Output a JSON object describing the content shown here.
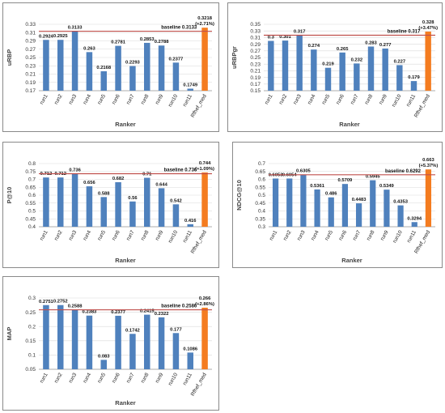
{
  "colors": {
    "bar": "#4f81bd",
    "highlight": "#f47c20",
    "baseline": "#c0504d",
    "grid": "#d9d9d9"
  },
  "chart_data": [
    {
      "type": "bar",
      "xlabel": "Ranker",
      "ylabel": "uRBP",
      "categories": [
        "run1",
        "run2",
        "run3",
        "run4",
        "run5",
        "run6",
        "run7",
        "run8",
        "run9",
        "run10",
        "run11",
        "Rfhef_med"
      ],
      "values": [
        0.2924,
        0.2925,
        0.3133,
        0.263,
        0.2168,
        0.2781,
        0.2293,
        0.2853,
        0.2788,
        0.2377,
        0.1749,
        0.3218
      ],
      "data_labels": [
        "0.2924",
        "0.2925",
        "0.3133",
        "0.263",
        "0.2168",
        "0.2781",
        "0.2293",
        "0.2853",
        "0.2788",
        "0.2377",
        "0.1749",
        "0.3218"
      ],
      "highlight_label_extra": "(+2.71%)",
      "highlight_index": 11,
      "baseline": 0.3133,
      "baseline_label": "baseline 0.3133",
      "ylim": [
        0.17,
        0.33
      ],
      "yticks": [
        "0.17",
        "0.19",
        "0.21",
        "0.23",
        "0.25",
        "0.27",
        "0.29",
        "0.31",
        "0.33"
      ],
      "grid": true
    },
    {
      "type": "bar",
      "xlabel": "Ranker",
      "ylabel": "uRBPgr",
      "categories": [
        "run1",
        "run2",
        "run3",
        "run4",
        "run5",
        "run6",
        "run7",
        "run8",
        "run9",
        "run10",
        "run11",
        "Rfhef_med"
      ],
      "values": [
        0.3,
        0.301,
        0.317,
        0.274,
        0.219,
        0.265,
        0.232,
        0.283,
        0.277,
        0.227,
        0.179,
        0.328
      ],
      "data_labels": [
        "0.3",
        "0.301",
        "0.317",
        "0.274",
        "0.219",
        "0.265",
        "0.232",
        "0.283",
        "0.277",
        "0.227",
        "0.179",
        "0.328"
      ],
      "highlight_label_extra": "(+3.47%)",
      "highlight_index": 11,
      "baseline": 0.317,
      "baseline_label": "baseline 0.317",
      "ylim": [
        0.15,
        0.35
      ],
      "yticks": [
        "0.15",
        "0.17",
        "0.19",
        "0.21",
        "0.23",
        "0.25",
        "0.27",
        "0.29",
        "0.31",
        "0.33",
        "0.35"
      ],
      "grid": true
    },
    {
      "type": "bar",
      "xlabel": "Ranker",
      "ylabel": "P@10",
      "categories": [
        "run1",
        "run2",
        "run3",
        "run4",
        "run5",
        "run6",
        "run7",
        "run8",
        "run9",
        "run10",
        "run11",
        "Rfhef_med"
      ],
      "values": [
        0.712,
        0.712,
        0.736,
        0.656,
        0.588,
        0.682,
        0.56,
        0.71,
        0.644,
        0.542,
        0.416,
        0.744
      ],
      "data_labels": [
        "0.712",
        "0.712",
        "0.736",
        "0.656",
        "0.588",
        "0.682",
        "0.56",
        "0.71",
        "0.644",
        "0.542",
        "0.416",
        "0.744"
      ],
      "highlight_label_extra": "(+1.09%)",
      "highlight_index": 11,
      "baseline": 0.736,
      "baseline_label": "baseline 0.736",
      "ylim": [
        0.4,
        0.8
      ],
      "yticks": [
        "0.4",
        "0.45",
        "0.5",
        "0.55",
        "0.6",
        "0.65",
        "0.7",
        "0.75",
        "0.8"
      ],
      "grid": true
    },
    {
      "type": "bar",
      "xlabel": "Ranker",
      "ylabel": "NDCG@10",
      "categories": [
        "run1",
        "run2",
        "run3",
        "run4",
        "run5",
        "run6",
        "run7",
        "run8",
        "run9",
        "run10",
        "run11",
        "Rfhef_med"
      ],
      "values": [
        0.6053,
        0.6054,
        0.6305,
        0.5361,
        0.486,
        0.5709,
        0.4483,
        0.5945,
        0.5349,
        0.4353,
        0.3294,
        0.663
      ],
      "data_labels": [
        "0.6053",
        "0.6054",
        "0.6305",
        "0.5361",
        "0.486",
        "0.5709",
        "0.4483",
        "0.5945",
        "0.5349",
        "0.4353",
        "0.3294",
        "0.663"
      ],
      "highlight_label_extra": "(+5.37%)",
      "highlight_index": 11,
      "baseline": 0.6292,
      "baseline_label": "baseline 0.6292",
      "ylim": [
        0.3,
        0.7
      ],
      "yticks": [
        "0.3",
        "0.35",
        "0.4",
        "0.45",
        "0.5",
        "0.55",
        "0.6",
        "0.65",
        "0.7"
      ],
      "grid": true
    },
    {
      "type": "bar",
      "xlabel": "Ranker",
      "ylabel": "MAP",
      "categories": [
        "run1",
        "run2",
        "run3",
        "run4",
        "run5",
        "run6",
        "run7",
        "run8",
        "run9",
        "run10",
        "run11",
        "Rfhef_med"
      ],
      "values": [
        0.2751,
        0.2752,
        0.2588,
        0.2383,
        0.083,
        0.2377,
        0.1742,
        0.2415,
        0.2322,
        0.177,
        0.1086,
        0.266
      ],
      "data_labels": [
        "0.2751",
        "0.2752",
        "0.2588",
        "0.2383",
        "0.083",
        "0.2377",
        "0.1742",
        "0.2415",
        "0.2322",
        "0.177",
        "0.1086",
        "0.266"
      ],
      "highlight_label_extra": "(+2.86%)",
      "highlight_index": 11,
      "baseline": 0.2586,
      "baseline_label": "baseline 0.2586",
      "ylim": [
        0.05,
        0.3
      ],
      "yticks": [
        "0.05",
        "0.1",
        "0.15",
        "0.2",
        "0.25",
        "0.3"
      ],
      "grid": true
    }
  ]
}
